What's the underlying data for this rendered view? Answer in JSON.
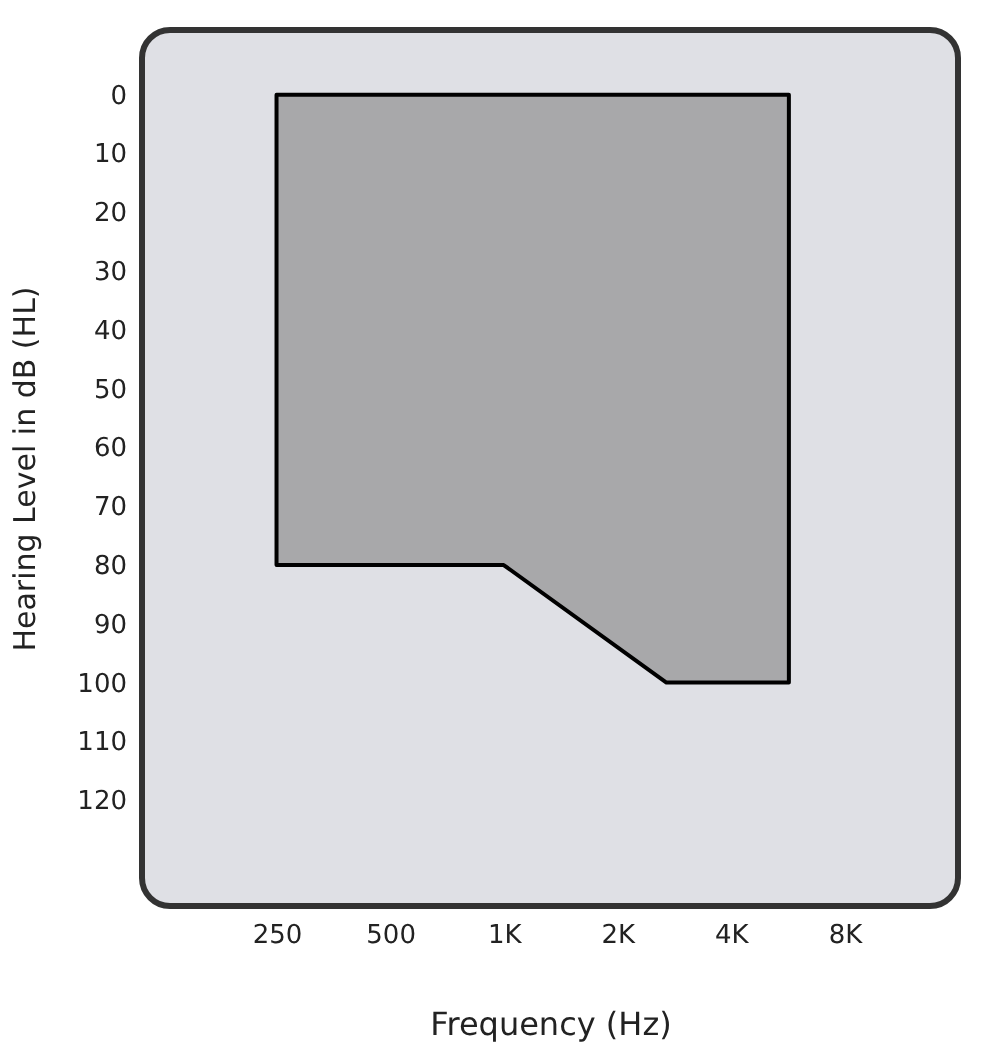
{
  "chart_data": {
    "type": "area",
    "xlabel": "Frequency (Hz)",
    "ylabel": "Hearing Level in dB (HL)",
    "log": "x",
    "x": [
      250,
      1000,
      2700,
      5700
    ],
    "series": [
      {
        "color": "#a8a8aa",
        "values": [
          80,
          80,
          100,
          100
        ]
      }
    ],
    "xlim": [
      110,
      16000
    ],
    "xticks": [
      250,
      500,
      {
        "value": 1000,
        "label": "1K"
      },
      {
        "value": 2000,
        "label": "2K"
      },
      {
        "value": 4000,
        "label": "4K"
      },
      {
        "value": 8000,
        "label": "8K"
      }
    ],
    "ylim": [
      138,
      -11
    ],
    "yticks": [
      0,
      10,
      20,
      30,
      40,
      50,
      60,
      70,
      80,
      90,
      100,
      110,
      120
    ],
    "grid": false
  }
}
